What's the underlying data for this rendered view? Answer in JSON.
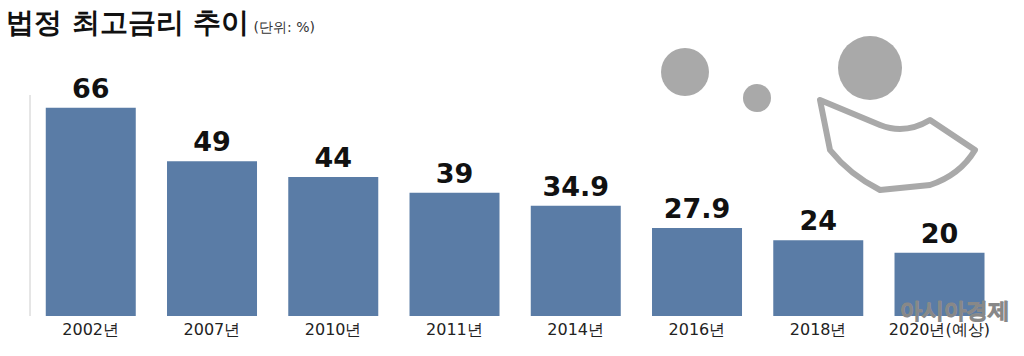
{
  "chart_data": {
    "type": "bar",
    "title": "법정 최고금리 추이",
    "subtitle": "(단위: %)",
    "categories": [
      "2002년",
      "2007년",
      "2010년",
      "2011년",
      "2014년",
      "2016년",
      "2018년",
      "2020년(예상)"
    ],
    "values": [
      66,
      49,
      44,
      39,
      34.9,
      27.9,
      24,
      20
    ],
    "color": "#5a7ca6",
    "ylim": [
      0,
      70
    ],
    "data_labels": true,
    "tick_labels": "x",
    "grid": false,
    "annotations": [
      "아시아경제"
    ]
  }
}
